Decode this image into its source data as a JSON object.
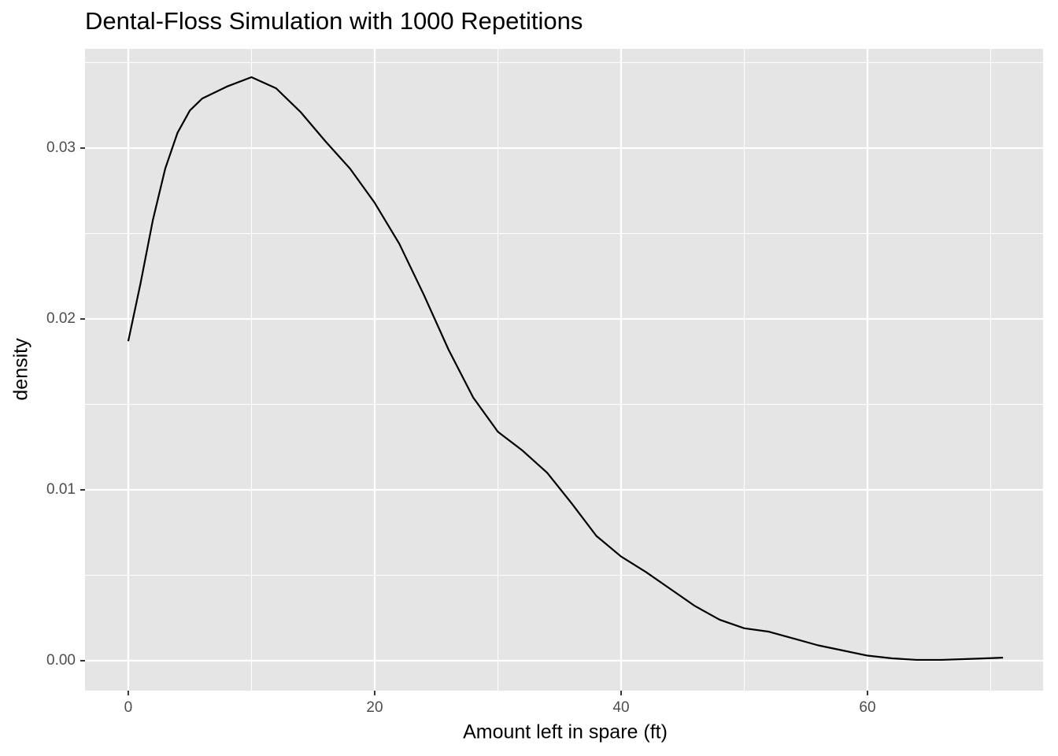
{
  "chart_data": {
    "type": "line",
    "title": "Dental-Floss Simulation with 1000 Repetitions",
    "xlabel": "Amount left in spare (ft)",
    "ylabel": "density",
    "x": [
      0,
      1,
      2,
      3,
      4,
      5,
      6,
      8,
      10,
      12,
      14,
      16,
      18,
      20,
      22,
      24,
      26,
      28,
      30,
      32,
      34,
      36,
      38,
      40,
      42,
      44,
      46,
      48,
      50,
      52,
      54,
      56,
      58,
      60,
      62,
      64,
      66,
      68,
      70,
      71
    ],
    "series": [
      {
        "color": "#000000",
        "values": [
          0.0187,
          0.0221,
          0.0258,
          0.0288,
          0.0309,
          0.0322,
          0.0329,
          0.0336,
          0.03415,
          0.0335,
          0.0321,
          0.0304,
          0.0288,
          0.0268,
          0.0244,
          0.0214,
          0.0182,
          0.0154,
          0.0134,
          0.0123,
          0.011,
          0.0092,
          0.0073,
          0.0061,
          0.0052,
          0.0042,
          0.0032,
          0.0024,
          0.0019,
          0.0017,
          0.0013,
          0.0009,
          0.0006,
          0.0003,
          0.00014,
          5e-05,
          5e-05,
          0.0001,
          0.00015,
          0.00018
        ]
      }
    ],
    "xlim": [
      -3.51,
      74.25
    ],
    "ylim": [
      -0.00175,
      0.03581
    ],
    "xticks": [
      0,
      20,
      40,
      60
    ],
    "yticks": [
      {
        "value": 0,
        "label": "0.00"
      },
      {
        "value": 0.01,
        "label": "0.01"
      },
      {
        "value": 0.02,
        "label": "0.02"
      },
      {
        "value": 0.03,
        "label": "0.03"
      }
    ],
    "grid": true
  }
}
